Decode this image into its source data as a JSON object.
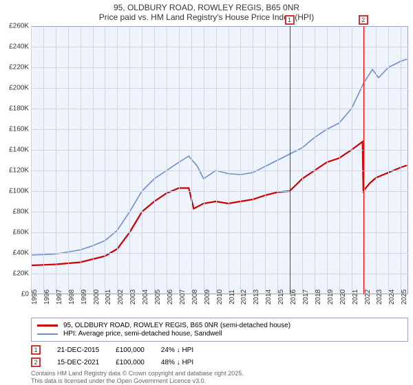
{
  "title_line1": "95, OLDBURY ROAD, ROWLEY REGIS, B65 0NR",
  "title_line2": "Price paid vs. HM Land Registry's House Price Index (HPI)",
  "chart": {
    "type": "line",
    "background_color": "#eff3fb",
    "border_color": "#999fbf",
    "grid_color": "#d0d4e4",
    "xlim": [
      1995,
      2025.6
    ],
    "ylim": [
      0,
      260000
    ],
    "ytick_step": 20000,
    "ytick_labels": [
      "£0",
      "£20K",
      "£40K",
      "£60K",
      "£80K",
      "£100K",
      "£120K",
      "£140K",
      "£160K",
      "£180K",
      "£200K",
      "£220K",
      "£240K",
      "£260K"
    ],
    "xticks": [
      1995,
      1996,
      1997,
      1998,
      1999,
      2000,
      2001,
      2002,
      2003,
      2004,
      2005,
      2006,
      2007,
      2008,
      2009,
      2010,
      2011,
      2012,
      2013,
      2014,
      2015,
      2016,
      2017,
      2018,
      2019,
      2020,
      2021,
      2022,
      2023,
      2024,
      2025
    ],
    "series": [
      {
        "name": "price_paid",
        "color": "#cc0000",
        "line_width": 2.2,
        "points": [
          [
            1995,
            28000
          ],
          [
            1996,
            28500
          ],
          [
            1997,
            29000
          ],
          [
            1998,
            30000
          ],
          [
            1999,
            31000
          ],
          [
            2000,
            34000
          ],
          [
            2001,
            37000
          ],
          [
            2002,
            44000
          ],
          [
            2003,
            60000
          ],
          [
            2004,
            80000
          ],
          [
            2005,
            90000
          ],
          [
            2006,
            98000
          ],
          [
            2007,
            103000
          ],
          [
            2007.8,
            103000
          ],
          [
            2008.2,
            83000
          ],
          [
            2009,
            88000
          ],
          [
            2010,
            90000
          ],
          [
            2011,
            88000
          ],
          [
            2012,
            90000
          ],
          [
            2013,
            92000
          ],
          [
            2014,
            96000
          ],
          [
            2015,
            99000
          ],
          [
            2015.97,
            100000
          ],
          [
            2016.5,
            106000
          ],
          [
            2017,
            112000
          ],
          [
            2018,
            120000
          ],
          [
            2019,
            128000
          ],
          [
            2020,
            132000
          ],
          [
            2021,
            140000
          ],
          [
            2021.9,
            148000
          ],
          [
            2021.96,
            100000
          ],
          [
            2022.5,
            108000
          ],
          [
            2023,
            113000
          ],
          [
            2024,
            118000
          ],
          [
            2025,
            123000
          ],
          [
            2025.5,
            125000
          ]
        ]
      },
      {
        "name": "hpi",
        "color": "#6a8fc8",
        "line_width": 1.6,
        "points": [
          [
            1995,
            38000
          ],
          [
            1996,
            38500
          ],
          [
            1997,
            39000
          ],
          [
            1998,
            41000
          ],
          [
            1999,
            43000
          ],
          [
            2000,
            47000
          ],
          [
            2001,
            52000
          ],
          [
            2002,
            62000
          ],
          [
            2003,
            80000
          ],
          [
            2004,
            100000
          ],
          [
            2005,
            112000
          ],
          [
            2006,
            120000
          ],
          [
            2007,
            128000
          ],
          [
            2007.8,
            134000
          ],
          [
            2008.5,
            124000
          ],
          [
            2009,
            112000
          ],
          [
            2010,
            120000
          ],
          [
            2011,
            117000
          ],
          [
            2012,
            116000
          ],
          [
            2013,
            118000
          ],
          [
            2014,
            124000
          ],
          [
            2015,
            130000
          ],
          [
            2016,
            136000
          ],
          [
            2017,
            142000
          ],
          [
            2018,
            152000
          ],
          [
            2019,
            160000
          ],
          [
            2020,
            166000
          ],
          [
            2021,
            180000
          ],
          [
            2022,
            205000
          ],
          [
            2022.7,
            218000
          ],
          [
            2023.2,
            210000
          ],
          [
            2024,
            220000
          ],
          [
            2025,
            226000
          ],
          [
            2025.5,
            228000
          ]
        ]
      }
    ],
    "markers": [
      {
        "label": "1",
        "x": 2015.97,
        "line_x": 2015.97
      },
      {
        "label": "2",
        "x": 2021.96,
        "line_x": 2021.96
      }
    ]
  },
  "legend": {
    "items": [
      {
        "label": "95, OLDBURY ROAD, ROWLEY REGIS, B65 0NR (semi-detached house)",
        "color": "#cc0000"
      },
      {
        "label": "HPI: Average price, semi-detached house, Sandwell",
        "color": "#6a8fc8"
      }
    ]
  },
  "annotations": [
    {
      "marker": "1",
      "date": "21-DEC-2015",
      "price": "£100,000",
      "delta": "24% ↓ HPI"
    },
    {
      "marker": "2",
      "date": "15-DEC-2021",
      "price": "£100,000",
      "delta": "48% ↓ HPI"
    }
  ],
  "attribution": {
    "line1": "Contains HM Land Registry data © Crown copyright and database right 2025.",
    "line2": "This data is licensed under the Open Government Licence v3.0."
  }
}
